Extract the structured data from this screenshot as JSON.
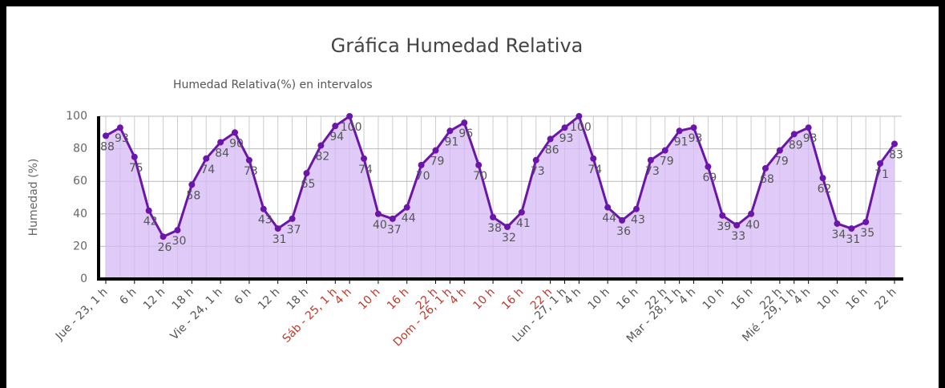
{
  "chart_data": {
    "type": "area",
    "title": "Gráfica Humedad Relativa",
    "subtitle": "Humedad Relativa(%) en intervalos",
    "y_label": "Humedad (%)",
    "categories": [
      "Jue - 23, 1 h",
      null,
      "6 h",
      null,
      "12 h",
      null,
      "18 h",
      null,
      "Vie - 24, 1 h",
      null,
      "6 h",
      null,
      "12 h",
      null,
      "18 h",
      null,
      "Sáb - 25, 1 h",
      "4 h",
      null,
      "10 h",
      null,
      "16 h",
      null,
      "22 h",
      "Dom - 26, 1 h",
      "4 h",
      null,
      "10 h",
      null,
      "16 h",
      null,
      "22 h",
      "Lun - 27, 1 h",
      "4 h",
      null,
      "10 h",
      null,
      "16 h",
      null,
      "22 h",
      "Mar - 28, 1 h",
      "4 h",
      null,
      "10 h",
      null,
      "16 h",
      null,
      "22 h",
      "Mié - 29, 1 h",
      "4 h",
      null,
      "10 h",
      null,
      "16 h",
      null,
      "22 h"
    ],
    "category_colors": [
      "#555",
      null,
      "#555",
      null,
      "#555",
      null,
      "#555",
      null,
      "#555",
      null,
      "#555",
      null,
      "#555",
      null,
      "#555",
      null,
      "#c0392b",
      "#c0392b",
      null,
      "#c0392b",
      null,
      "#c0392b",
      null,
      "#c0392b",
      "#c0392b",
      "#c0392b",
      null,
      "#c0392b",
      null,
      "#c0392b",
      null,
      "#c0392b",
      "#555",
      "#555",
      null,
      "#555",
      null,
      "#555",
      null,
      "#555",
      "#555",
      "#555",
      null,
      "#555",
      null,
      "#555",
      null,
      "#555",
      "#555",
      "#555",
      null,
      "#555",
      null,
      "#555",
      null,
      "#555"
    ],
    "values": [
      88,
      93,
      75,
      42,
      26,
      30,
      58,
      74,
      84,
      90,
      73,
      43,
      31,
      37,
      65,
      82,
      94,
      100,
      74,
      40,
      37,
      44,
      70,
      79,
      91,
      96,
      70,
      38,
      32,
      41,
      73,
      86,
      93,
      100,
      74,
      44,
      36,
      43,
      73,
      79,
      91,
      93,
      69,
      39,
      33,
      40,
      68,
      79,
      89,
      93,
      62,
      34,
      31,
      35,
      71,
      83
    ],
    "color": "#6a16a8",
    "fill_color": "#d6b8f4",
    "ylim": [
      0,
      100
    ],
    "yticks": [
      0,
      20,
      40,
      60,
      80,
      100
    ],
    "grid": true
  }
}
